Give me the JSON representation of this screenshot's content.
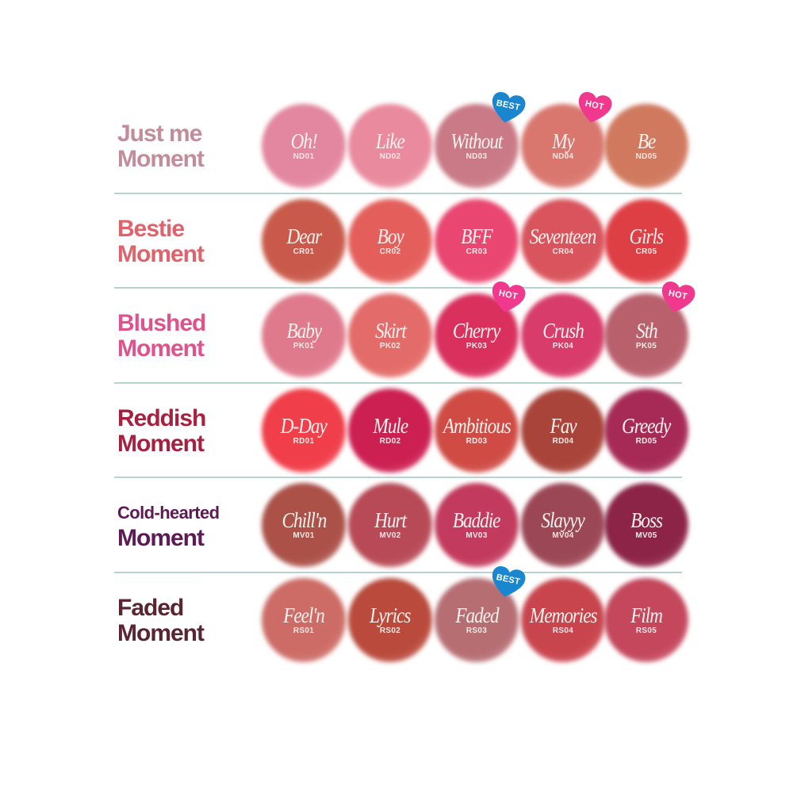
{
  "categories": [
    {
      "line1": "Just me",
      "line2": "Moment",
      "color": "#c28c9c",
      "small": false,
      "shades": [
        {
          "name": "Oh!",
          "code": "ND01",
          "color": "#e3869f",
          "badge": null
        },
        {
          "name": "Like",
          "code": "ND02",
          "color": "#e98a9e",
          "badge": null
        },
        {
          "name": "Without",
          "code": "ND03",
          "color": "#c97a86",
          "badge": "BEST"
        },
        {
          "name": "My",
          "code": "ND04",
          "color": "#d9776f",
          "badge": "HOT"
        },
        {
          "name": "Be",
          "code": "ND05",
          "color": "#d0795f",
          "badge": null
        }
      ]
    },
    {
      "line1": "Bestie",
      "line2": "Moment",
      "color": "#e0626a",
      "small": false,
      "shades": [
        {
          "name": "Dear",
          "code": "CR01",
          "color": "#c95a4b",
          "badge": null
        },
        {
          "name": "Boy",
          "code": "CR02",
          "color": "#e45f5c",
          "badge": null
        },
        {
          "name": "BFF",
          "code": "CR03",
          "color": "#e94671",
          "badge": null
        },
        {
          "name": "Seventeen",
          "code": "CR04",
          "color": "#d9545c",
          "badge": null
        },
        {
          "name": "Girls",
          "code": "CR05",
          "color": "#de3f45",
          "badge": null
        }
      ]
    },
    {
      "line1": "Blushed",
      "line2": "Moment",
      "color": "#e0528c",
      "small": false,
      "shades": [
        {
          "name": "Baby",
          "code": "PK01",
          "color": "#df7a8c",
          "badge": null
        },
        {
          "name": "Skirt",
          "code": "PK02",
          "color": "#e36c6a",
          "badge": null
        },
        {
          "name": "Cherry",
          "code": "PK03",
          "color": "#d9305e",
          "badge": "HOT"
        },
        {
          "name": "Crush",
          "code": "PK04",
          "color": "#d73c6a",
          "badge": null
        },
        {
          "name": "Sth",
          "code": "PK05",
          "color": "#b9606d",
          "badge": "HOT"
        }
      ]
    },
    {
      "line1": "Reddish",
      "line2": "Moment",
      "color": "#a8203f",
      "small": false,
      "shades": [
        {
          "name": "D-Day",
          "code": "RD01",
          "color": "#f03e4a",
          "badge": null
        },
        {
          "name": "Mule",
          "code": "RD02",
          "color": "#cc1f52",
          "badge": null
        },
        {
          "name": "Ambitious",
          "code": "RD03",
          "color": "#cf4b44",
          "badge": null
        },
        {
          "name": "Fav",
          "code": "RD04",
          "color": "#a9443a",
          "badge": null
        },
        {
          "name": "Greedy",
          "code": "RD05",
          "color": "#a62a55",
          "badge": null
        }
      ]
    },
    {
      "line1": "Cold-hearted",
      "line2": "Moment",
      "color": "#5e1a55",
      "small": true,
      "shades": [
        {
          "name": "Chill'n",
          "code": "MV01",
          "color": "#ab5148",
          "badge": null
        },
        {
          "name": "Hurt",
          "code": "MV02",
          "color": "#b74a56",
          "badge": null
        },
        {
          "name": "Baddie",
          "code": "MV03",
          "color": "#c23a5d",
          "badge": null
        },
        {
          "name": "Slayyy",
          "code": "MV04",
          "color": "#9c4756",
          "badge": null
        },
        {
          "name": "Boss",
          "code": "MV05",
          "color": "#8c2448",
          "badge": null
        }
      ]
    },
    {
      "line1": "Faded",
      "line2": "Moment",
      "color": "#5a2430",
      "small": false,
      "shades": [
        {
          "name": "Feel'n",
          "code": "RS01",
          "color": "#cd6c66",
          "badge": null
        },
        {
          "name": "Lyrics",
          "code": "RS02",
          "color": "#b94a3c",
          "badge": null
        },
        {
          "name": "Faded",
          "code": "RS03",
          "color": "#b66e73",
          "badge": "BEST"
        },
        {
          "name": "Memories",
          "code": "RS04",
          "color": "#c9454e",
          "badge": null
        },
        {
          "name": "Film",
          "code": "RS05",
          "color": "#c4475c",
          "badge": null
        }
      ]
    }
  ],
  "badge_colors": {
    "BEST": "#1a86d0",
    "HOT": "#f0388e"
  }
}
